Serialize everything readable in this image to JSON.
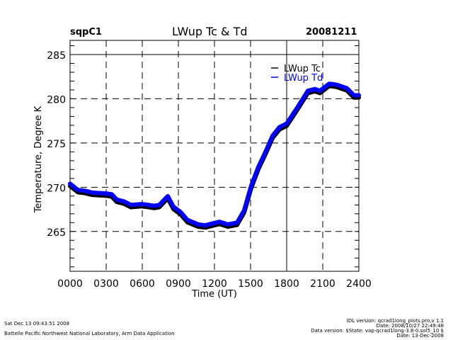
{
  "header": {
    "site": "sqpC1",
    "date": "20081211"
  },
  "chart_data": {
    "type": "line",
    "title": "LWup Tc & Td",
    "xlabel": "Time (UT)",
    "ylabel": "Temperature, Degree K",
    "xlim": [
      0,
      24
    ],
    "ylim": [
      260.5,
      286.6
    ],
    "x_ticks": [
      0,
      3,
      6,
      9,
      12,
      15,
      18,
      21,
      24
    ],
    "x_tick_labels": [
      "0000",
      "0300",
      "0600",
      "0900",
      "1200",
      "1500",
      "1800",
      "2100",
      "2400"
    ],
    "y_ticks": [
      265,
      270,
      275,
      280,
      285
    ],
    "y_tick_labels": [
      "265",
      "270",
      "275",
      "280",
      "285"
    ],
    "grid": true,
    "legend_position": "top-right",
    "series": [
      {
        "name": "LWup Tc",
        "color": "#000000",
        "x": [
          0,
          0.65,
          1.24,
          1.82,
          3.0,
          3.47,
          3.88,
          4.47,
          5.06,
          5.94,
          6.53,
          7.0,
          7.41,
          8.12,
          8.59,
          9.18,
          9.76,
          10.65,
          11.24,
          11.82,
          12.41,
          13.12,
          13.88,
          14.47,
          15.06,
          15.65,
          16.24,
          16.82,
          17.41,
          18.0,
          18.88,
          19.76,
          20.35,
          20.76,
          21.53,
          22.12,
          23.0,
          23.59,
          24.0
        ],
        "y": [
          270.3,
          269.6,
          269.5,
          269.3,
          269.2,
          269.1,
          268.5,
          268.3,
          267.9,
          268.0,
          267.9,
          267.8,
          267.9,
          268.9,
          267.7,
          267.1,
          266.2,
          265.7,
          265.6,
          265.8,
          266.0,
          265.7,
          265.9,
          267.3,
          270.1,
          272.2,
          273.9,
          275.7,
          276.7,
          277.1,
          278.9,
          280.8,
          281.0,
          280.8,
          281.6,
          281.5,
          281.1,
          280.3,
          280.3
        ]
      },
      {
        "name": "LWup Td",
        "color": "#0000ff",
        "x": [
          0,
          0.65,
          1.24,
          1.82,
          3.0,
          3.47,
          3.88,
          4.47,
          5.06,
          5.94,
          6.53,
          7.0,
          7.41,
          8.12,
          8.59,
          9.18,
          9.76,
          10.65,
          11.24,
          11.82,
          12.41,
          13.12,
          13.88,
          14.47,
          15.06,
          15.65,
          16.24,
          16.82,
          17.41,
          18.0,
          18.88,
          19.76,
          20.35,
          20.76,
          21.53,
          22.12,
          23.0,
          23.59,
          24.0
        ],
        "y": [
          270.4,
          269.7,
          269.6,
          269.4,
          269.3,
          269.2,
          268.6,
          268.4,
          268.0,
          268.1,
          268.0,
          267.9,
          268.0,
          269.0,
          267.8,
          267.2,
          266.3,
          265.8,
          265.7,
          265.9,
          266.1,
          265.8,
          266.0,
          267.4,
          270.2,
          272.3,
          274.0,
          275.8,
          276.8,
          277.2,
          279.0,
          280.9,
          281.1,
          280.9,
          281.7,
          281.6,
          281.2,
          280.4,
          280.4
        ]
      }
    ]
  },
  "footer": {
    "timestamp": "Sat Dec 13 09:43:51 2008",
    "credit": "Battelle Pacific Northwest National Laboratory, Arm Data Application",
    "idl_version": "IDL version: qcrad1long_plots.pro,v 1.1",
    "idl_date": "Date: 2008/10/27 22:49:48",
    "data_version": "Data version: $State: vap-qcrad1long-3.8-0.sol5_10 $",
    "data_date": "Date: 13-Dec-2008"
  }
}
